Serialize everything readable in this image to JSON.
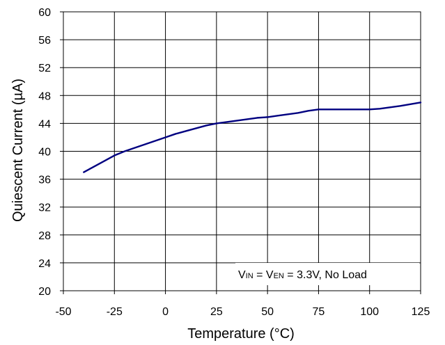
{
  "chart_data": {
    "type": "line",
    "xlabel": "Temperature (°C)",
    "ylabel": "Quiescent Current (µA)",
    "xlim": [
      -50,
      125
    ],
    "ylim": [
      20,
      60
    ],
    "x_ticks": [
      -50,
      -25,
      0,
      25,
      50,
      75,
      100,
      125
    ],
    "y_ticks": [
      20,
      24,
      28,
      32,
      36,
      40,
      44,
      48,
      52,
      56,
      60
    ],
    "grid": true,
    "line_color": "#000080",
    "annotation": {
      "v1": "V",
      "v1_sub": "IN",
      "eq1": " = V",
      "v2_sub": "EN",
      "rest": " = 3.3V, No Load"
    },
    "series": [
      {
        "x": [
          -40,
          -35,
          -30,
          -25,
          -20,
          -15,
          -10,
          -5,
          0,
          5,
          10,
          15,
          20,
          25,
          30,
          35,
          40,
          45,
          50,
          55,
          60,
          65,
          70,
          75,
          80,
          85,
          90,
          95,
          100,
          105,
          110,
          115,
          120,
          125
        ],
        "values": [
          37.0,
          37.8,
          38.6,
          39.4,
          40.0,
          40.5,
          41.0,
          41.5,
          42.0,
          42.5,
          42.9,
          43.3,
          43.7,
          44.0,
          44.2,
          44.4,
          44.6,
          44.8,
          44.9,
          45.1,
          45.3,
          45.5,
          45.8,
          46.0,
          46.0,
          46.0,
          46.0,
          46.0,
          46.0,
          46.1,
          46.3,
          46.5,
          46.75,
          47.0
        ]
      }
    ]
  }
}
